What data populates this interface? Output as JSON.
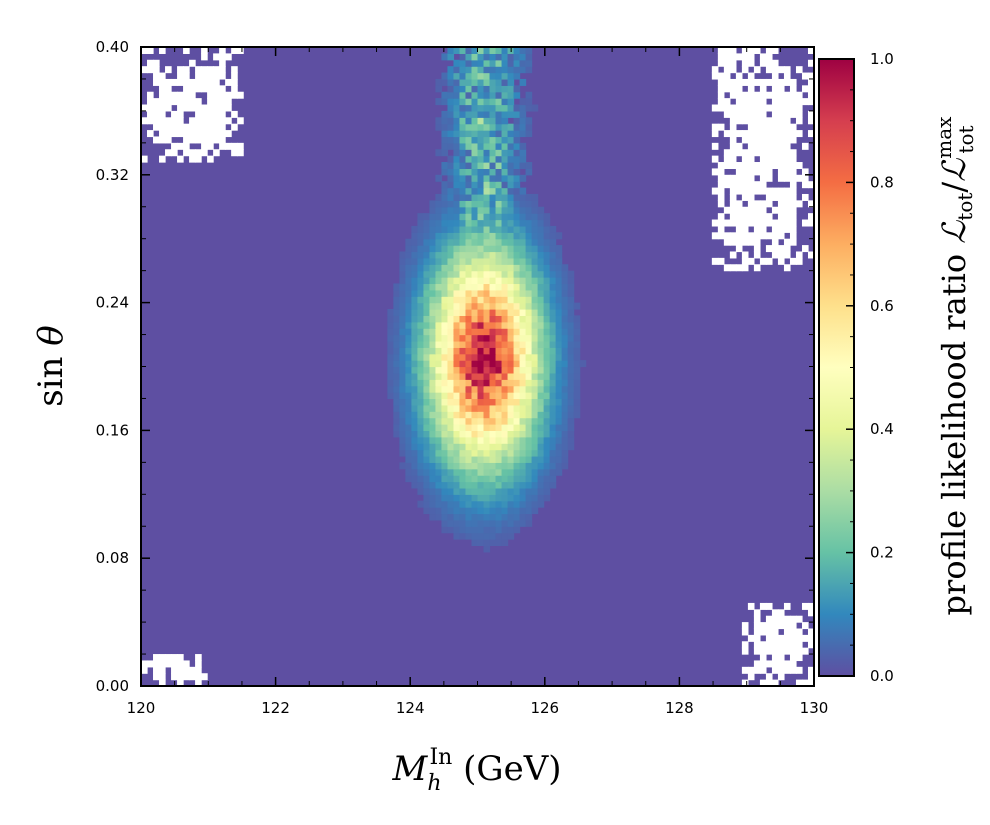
{
  "chart_data": {
    "type": "heatmap",
    "title": "",
    "xlabel": {
      "base": "M",
      "sub": "h",
      "sup": "In",
      "unit": " (GeV)"
    },
    "ylabel": {
      "func": "sin",
      "var": "θ"
    },
    "xlim": [
      120,
      130
    ],
    "ylim": [
      0.0,
      0.4
    ],
    "x_ticks": [
      120,
      122,
      124,
      126,
      128,
      130
    ],
    "x_tick_labels": [
      "120",
      "122",
      "124",
      "126",
      "128",
      "130"
    ],
    "y_ticks": [
      0.0,
      0.08,
      0.16,
      0.24,
      0.32,
      0.4
    ],
    "y_tick_labels": [
      "0.00",
      "0.08",
      "0.16",
      "0.24",
      "0.32",
      "0.40"
    ],
    "colorbar": {
      "label": "profile likelihood ratio",
      "label_math": {
        "num": "ℒ",
        "num_sub": "tot",
        "den": "ℒ",
        "den_sub": "tot",
        "den_sup": "max"
      },
      "range": [
        0.0,
        1.0
      ],
      "ticks": [
        0.0,
        0.2,
        0.4,
        0.6,
        0.8,
        1.0
      ],
      "tick_labels": [
        "0.0",
        "0.2",
        "0.4",
        "0.6",
        "0.8",
        "1.0"
      ],
      "colormap": "Spectral_r",
      "colors": [
        "#5e4fa2",
        "#3288bd",
        "#66c2a5",
        "#abdda4",
        "#e6f598",
        "#ffffbf",
        "#fee08b",
        "#fdae61",
        "#f46d43",
        "#d53e4f",
        "#9e0142"
      ]
    },
    "peak": {
      "x": 125.1,
      "y": 0.21,
      "value": 1.0
    },
    "blob": {
      "center_x": 125.1,
      "center_y": 0.205,
      "sigma_x": 0.55,
      "sigma_y": 0.045,
      "value_at_y_0.16": 0.4
    },
    "tail": {
      "x_min": 124.3,
      "x_max": 125.9,
      "y_min": 0.24,
      "y_max": 0.4,
      "value_range": [
        0.05,
        0.3
      ]
    },
    "background_value": 0.0,
    "empty_regions": [
      {
        "x_range": [
          120.0,
          121.5
        ],
        "y_range": [
          0.33,
          0.4
        ]
      },
      {
        "x_range": [
          128.5,
          130.0
        ],
        "y_range": [
          0.26,
          0.4
        ]
      },
      {
        "x_range": [
          120.0,
          121.0
        ],
        "y_range": [
          0.0,
          0.02
        ]
      },
      {
        "x_range": [
          128.9,
          130.0
        ],
        "y_range": [
          0.0,
          0.05
        ]
      }
    ]
  }
}
